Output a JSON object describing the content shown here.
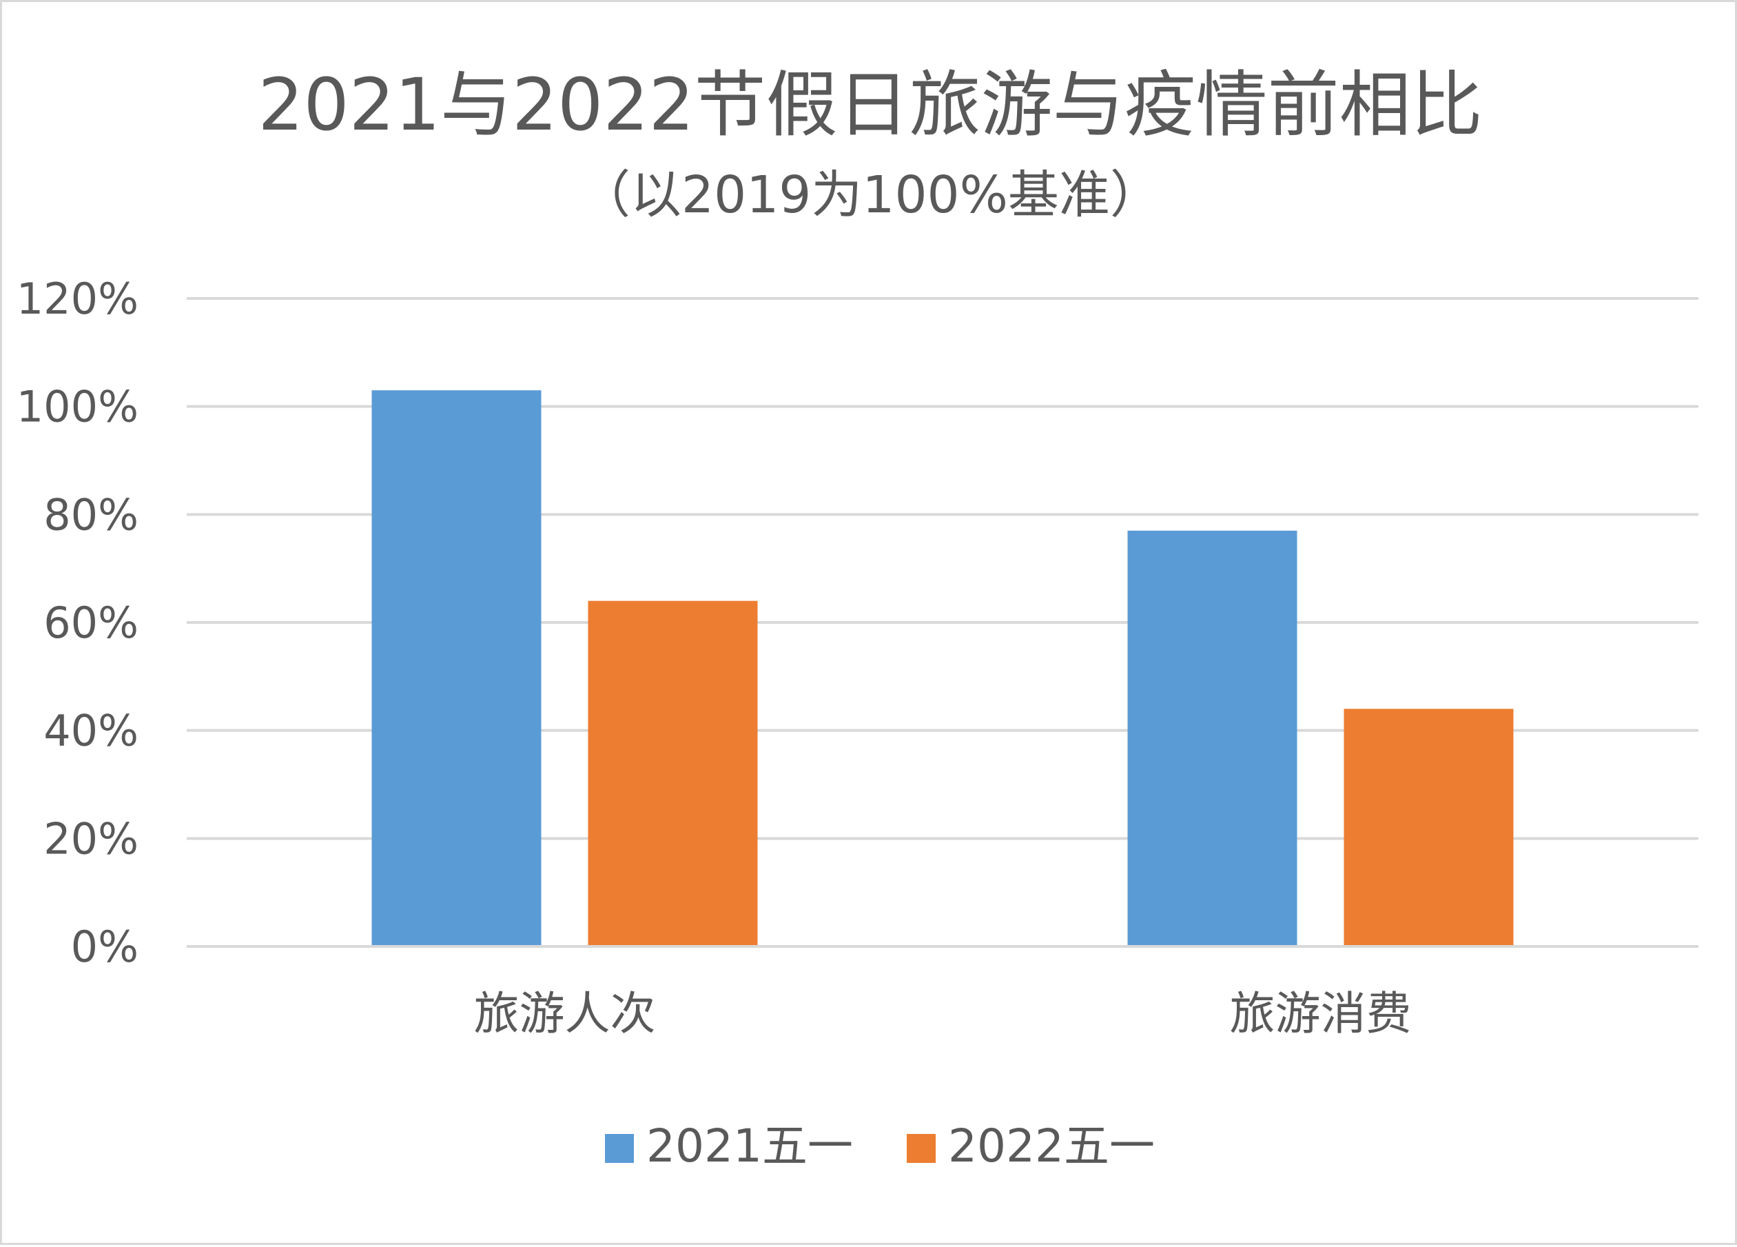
{
  "chart_data": {
    "type": "bar",
    "title": "2021与2022节假日旅游与疫情前相比",
    "subtitle": "（以2019为100%基准）",
    "categories": [
      "旅游人次",
      "旅游消费"
    ],
    "series": [
      {
        "name": "2021五一",
        "values": [
          103,
          77
        ],
        "color": "#5b9bd5"
      },
      {
        "name": "2022五一",
        "values": [
          64,
          44
        ],
        "color": "#ed7d31"
      }
    ],
    "ylim": [
      0,
      120
    ],
    "yticks": [
      0,
      20,
      40,
      60,
      80,
      100,
      120
    ],
    "ytick_labels": [
      "0%",
      "20%",
      "40%",
      "60%",
      "80%",
      "100%",
      "120%"
    ],
    "grid": true,
    "legend_position": "bottom"
  }
}
